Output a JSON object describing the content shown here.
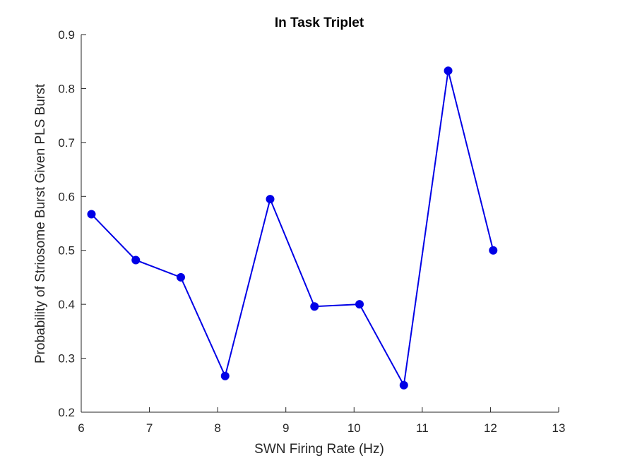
{
  "chart_data": {
    "type": "line",
    "title": "In Task Triplet",
    "xlabel": "SWN Firing Rate (Hz)",
    "ylabel": "Probability of Striosome Burst Given PLS Burst",
    "xlim": [
      6,
      13
    ],
    "ylim": [
      0.2,
      0.9
    ],
    "xticks": [
      6,
      7,
      8,
      9,
      10,
      11,
      12,
      13
    ],
    "yticks": [
      0.2,
      0.3,
      0.4,
      0.5,
      0.6,
      0.7,
      0.8,
      0.9
    ],
    "xtick_labels": [
      "6",
      "7",
      "8",
      "9",
      "10",
      "11",
      "12",
      "13"
    ],
    "ytick_labels": [
      "0.2",
      "0.3",
      "0.4",
      "0.5",
      "0.6",
      "0.7",
      "0.8",
      "0.9"
    ],
    "grid": false,
    "series": [
      {
        "color": "#0000e6",
        "marker": "filled-circle",
        "x": [
          6.15,
          6.8,
          7.46,
          8.11,
          8.77,
          9.42,
          10.08,
          10.73,
          11.38,
          12.04
        ],
        "y": [
          0.567,
          0.482,
          0.45,
          0.267,
          0.595,
          0.396,
          0.4,
          0.25,
          0.833,
          0.5
        ]
      }
    ]
  }
}
